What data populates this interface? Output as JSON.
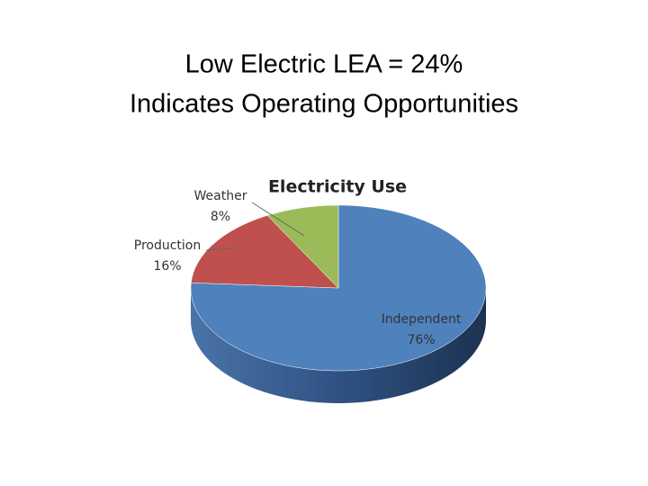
{
  "slide_title": [
    "Low Electric LEA = 24%",
    "Indicates Operating Opportunities"
  ],
  "chart_data": {
    "type": "pie",
    "title": "Electricity Use",
    "categories": [
      "Independent",
      "Production",
      "Weather"
    ],
    "values": [
      76,
      16,
      8
    ],
    "value_labels": [
      "76%",
      "16%",
      "8%"
    ],
    "colors": [
      "#4f81bd",
      "#c0504d",
      "#9bbb59"
    ]
  }
}
